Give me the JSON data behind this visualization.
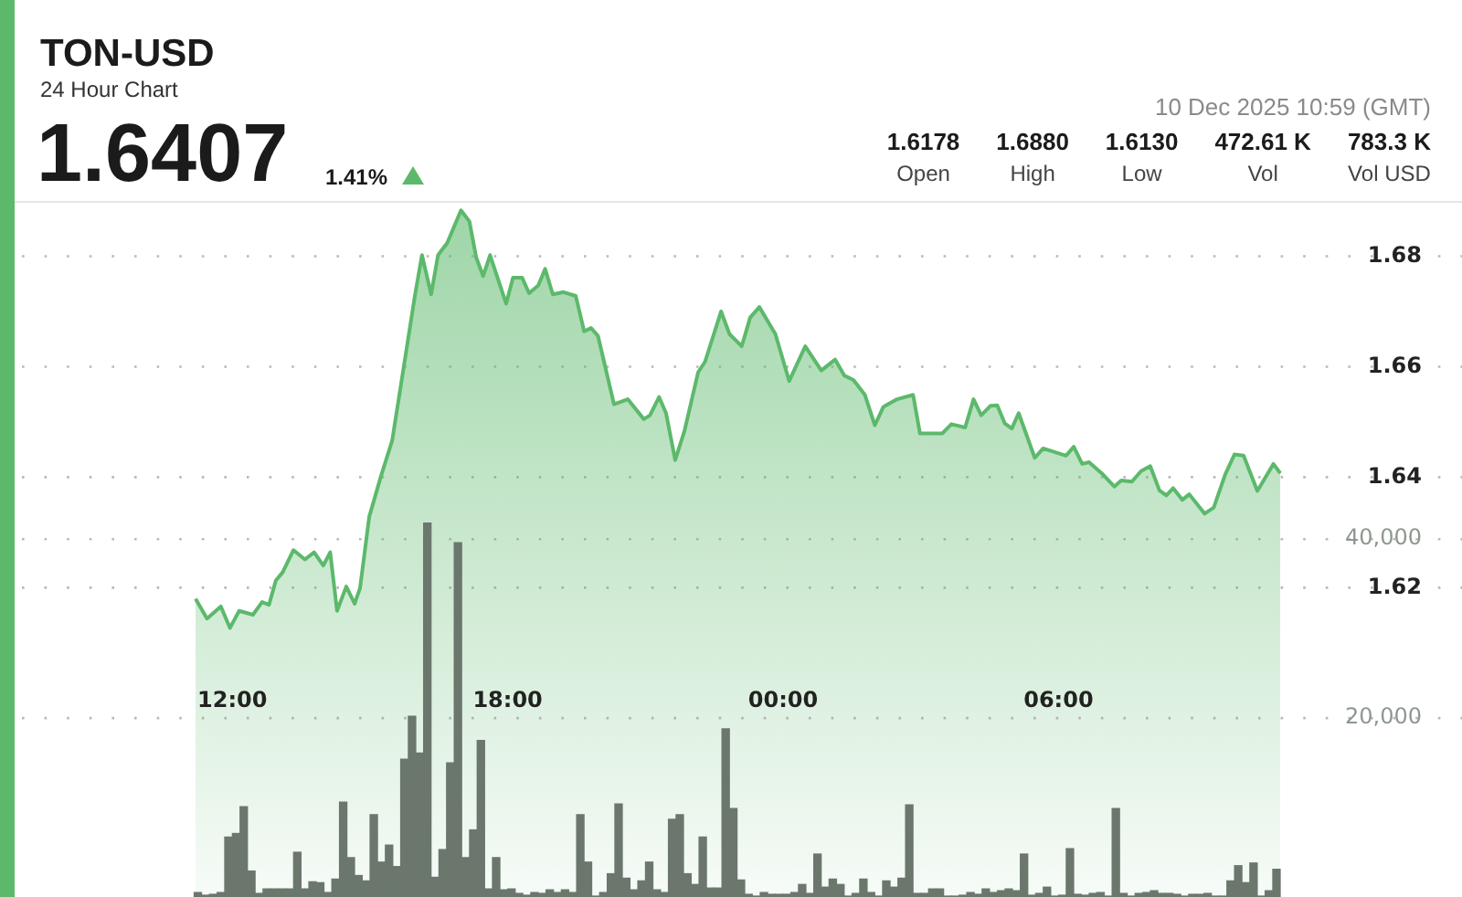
{
  "chart_data": {
    "type": "area",
    "title": "TON-USD",
    "subtitle": "24 Hour Chart",
    "annotations": [
      "1.6407",
      "1.41%",
      "10 Dec 2025 10:59 (GMT)",
      "1.6178",
      "Open",
      "1.6880",
      "High",
      "1.6130",
      "Low",
      "472.61 K",
      "Vol",
      "783.3 K",
      "Vol USD"
    ],
    "xlim": [
      "2025-12-09T11:12",
      "2025-12-10T10:51"
    ],
    "xticks": [
      {
        "value": "2025-12-09T12:00",
        "label": "12:00"
      },
      {
        "value": "2025-12-09T18:00",
        "label": "18:00"
      },
      {
        "value": "2025-12-10T00:00",
        "label": "00:00"
      },
      {
        "value": "2025-12-10T06:00",
        "label": "06:00"
      }
    ],
    "ylim": [
      1.564,
      1.69
    ],
    "yticks": [
      1.62,
      1.64,
      1.66,
      1.68
    ],
    "y2lim": [
      0,
      77800
    ],
    "y2ticks": [
      {
        "value": 20000,
        "label": "20,000"
      },
      {
        "value": 40000,
        "label": "40,000"
      }
    ],
    "grid": "y",
    "legend": false,
    "series": [
      {
        "color": "#5cb96b",
        "x": [
          "2025-12-09T11:12",
          "2025-12-09T11:27",
          "2025-12-09T11:45",
          "2025-12-09T11:57",
          "2025-12-09T12:09",
          "2025-12-09T12:27",
          "2025-12-09T12:39",
          "2025-12-09T12:48",
          "2025-12-09T12:57",
          "2025-12-09T13:06",
          "2025-12-09T13:20",
          "2025-12-09T13:35",
          "2025-12-09T13:47",
          "2025-12-09T13:59",
          "2025-12-09T14:08",
          "2025-12-09T14:17",
          "2025-12-09T14:29",
          "2025-12-09T14:40",
          "2025-12-09T14:47",
          "2025-12-09T14:59",
          "2025-12-09T15:14",
          "2025-12-09T15:29",
          "2025-12-09T15:44",
          "2025-12-09T15:59",
          "2025-12-09T16:08",
          "2025-12-09T16:20",
          "2025-12-09T16:29",
          "2025-12-09T16:41",
          "2025-12-09T16:59",
          "2025-12-09T17:10",
          "2025-12-09T17:19",
          "2025-12-09T17:28",
          "2025-12-09T17:37",
          "2025-12-09T17:58",
          "2025-12-09T18:07",
          "2025-12-09T18:19",
          "2025-12-09T18:28",
          "2025-12-09T18:40",
          "2025-12-09T18:49",
          "2025-12-09T18:59",
          "2025-12-09T19:13",
          "2025-12-09T19:29",
          "2025-12-09T19:40",
          "2025-12-09T19:49",
          "2025-12-09T19:58",
          "2025-12-09T20:19",
          "2025-12-09T20:37",
          "2025-12-09T20:58",
          "2025-12-09T21:06",
          "2025-12-09T21:18",
          "2025-12-09T21:27",
          "2025-12-09T21:39",
          "2025-12-09T21:51",
          "2025-12-09T22:09",
          "2025-12-09T22:18",
          "2025-12-09T22:39",
          "2025-12-09T22:50",
          "2025-12-09T23:06",
          "2025-12-09T23:17",
          "2025-12-09T23:29",
          "2025-12-09T23:50",
          "2025-12-10T00:08",
          "2025-12-10T00:29",
          "2025-12-10T00:50",
          "2025-12-10T01:08",
          "2025-12-10T01:20",
          "2025-12-10T01:32",
          "2025-12-10T01:47",
          "2025-12-10T02:00",
          "2025-12-10T02:11",
          "2025-12-10T02:29",
          "2025-12-10T02:50",
          "2025-12-10T02:59",
          "2025-12-10T03:28",
          "2025-12-10T03:40",
          "2025-12-10T03:58",
          "2025-12-10T04:09",
          "2025-12-10T04:19",
          "2025-12-10T04:31",
          "2025-12-10T04:40",
          "2025-12-10T04:50",
          "2025-12-10T04:59",
          "2025-12-10T05:08",
          "2025-12-10T05:29",
          "2025-12-10T05:40",
          "2025-12-10T06:10",
          "2025-12-10T06:20",
          "2025-12-10T06:31",
          "2025-12-10T06:40",
          "2025-12-10T06:58",
          "2025-12-10T07:13",
          "2025-12-10T07:22",
          "2025-12-10T07:36",
          "2025-12-10T07:48",
          "2025-12-10T08:00",
          "2025-12-10T08:12",
          "2025-12-10T08:21",
          "2025-12-10T08:30",
          "2025-12-10T08:42",
          "2025-12-10T08:51",
          "2025-12-10T09:11",
          "2025-12-10T09:23",
          "2025-12-10T09:38",
          "2025-12-10T09:50",
          "2025-12-10T10:02",
          "2025-12-10T10:20",
          "2025-12-10T10:41",
          "2025-12-10T10:50"
        ],
        "values": [
          1.618,
          1.6144,
          1.6166,
          1.6127,
          1.6158,
          1.6151,
          1.6174,
          1.6169,
          1.6213,
          1.6228,
          1.6268,
          1.6251,
          1.6264,
          1.624,
          1.6264,
          1.6158,
          1.6202,
          1.6171,
          1.6199,
          1.6328,
          1.64,
          1.6466,
          1.6598,
          1.6731,
          1.6802,
          1.6731,
          1.6802,
          1.6824,
          1.6883,
          1.6863,
          1.6797,
          1.6764,
          1.6802,
          1.6714,
          1.6761,
          1.6761,
          1.6733,
          1.6747,
          1.6777,
          1.6731,
          1.6735,
          1.6728,
          1.6664,
          1.667,
          1.6656,
          1.6532,
          1.6541,
          1.6505,
          1.6512,
          1.6545,
          1.6516,
          1.6431,
          1.6483,
          1.659,
          1.6609,
          1.67,
          1.6659,
          1.6637,
          1.6689,
          1.6708,
          1.6659,
          1.6574,
          1.6637,
          1.6593,
          1.6613,
          1.6584,
          1.6576,
          1.6549,
          1.6494,
          1.6527,
          1.6541,
          1.6549,
          1.6479,
          1.6479,
          1.6496,
          1.649,
          1.6541,
          1.6512,
          1.6529,
          1.653,
          1.6497,
          1.6488,
          1.6516,
          1.6435,
          1.6452,
          1.6439,
          1.6455,
          1.6424,
          1.6427,
          1.6405,
          1.6383,
          1.6394,
          1.6392,
          1.6411,
          1.642,
          1.6376,
          1.6367,
          1.638,
          1.6359,
          1.6369,
          1.6334,
          1.6345,
          1.6405,
          1.6441,
          1.6439,
          1.6375,
          1.6424,
          1.6407
        ]
      },
      {
        "type": "bar",
        "axis": "y2",
        "color": "#6b776d",
        "x": [
          "2025-12-09T11:15",
          "2025-12-09T11:25",
          "2025-12-09T11:35",
          "2025-12-09T11:45",
          "2025-12-09T11:55",
          "2025-12-09T12:05",
          "2025-12-09T12:15",
          "2025-12-09T12:25",
          "2025-12-09T12:35",
          "2025-12-09T12:45",
          "2025-12-09T12:55",
          "2025-12-09T13:05",
          "2025-12-09T13:15",
          "2025-12-09T13:25",
          "2025-12-09T13:35",
          "2025-12-09T13:45",
          "2025-12-09T13:55",
          "2025-12-09T14:05",
          "2025-12-09T14:15",
          "2025-12-09T14:25",
          "2025-12-09T14:35",
          "2025-12-09T14:45",
          "2025-12-09T14:55",
          "2025-12-09T15:05",
          "2025-12-09T15:15",
          "2025-12-09T15:25",
          "2025-12-09T15:35",
          "2025-12-09T15:45",
          "2025-12-09T15:55",
          "2025-12-09T16:05",
          "2025-12-09T16:15",
          "2025-12-09T16:25",
          "2025-12-09T16:35",
          "2025-12-09T16:45",
          "2025-12-09T16:55",
          "2025-12-09T17:05",
          "2025-12-09T17:15",
          "2025-12-09T17:25",
          "2025-12-09T17:35",
          "2025-12-09T17:45",
          "2025-12-09T17:55",
          "2025-12-09T18:05",
          "2025-12-09T18:15",
          "2025-12-09T18:25",
          "2025-12-09T18:35",
          "2025-12-09T18:45",
          "2025-12-09T18:55",
          "2025-12-09T19:05",
          "2025-12-09T19:15",
          "2025-12-09T19:25",
          "2025-12-09T19:35",
          "2025-12-09T19:45",
          "2025-12-09T19:55",
          "2025-12-09T20:05",
          "2025-12-09T20:15",
          "2025-12-09T20:25",
          "2025-12-09T20:35",
          "2025-12-09T20:45",
          "2025-12-09T20:55",
          "2025-12-09T21:05",
          "2025-12-09T21:15",
          "2025-12-09T21:25",
          "2025-12-09T21:35",
          "2025-12-09T21:45",
          "2025-12-09T21:55",
          "2025-12-09T22:05",
          "2025-12-09T22:15",
          "2025-12-09T22:25",
          "2025-12-09T22:35",
          "2025-12-09T22:45",
          "2025-12-09T22:55",
          "2025-12-09T23:05",
          "2025-12-09T23:15",
          "2025-12-09T23:25",
          "2025-12-09T23:35",
          "2025-12-09T23:45",
          "2025-12-09T23:55",
          "2025-12-10T00:05",
          "2025-12-10T00:15",
          "2025-12-10T00:25",
          "2025-12-10T00:35",
          "2025-12-10T00:45",
          "2025-12-10T00:55",
          "2025-12-10T01:05",
          "2025-12-10T01:15",
          "2025-12-10T01:25",
          "2025-12-10T01:35",
          "2025-12-10T01:45",
          "2025-12-10T01:55",
          "2025-12-10T02:05",
          "2025-12-10T02:15",
          "2025-12-10T02:25",
          "2025-12-10T02:35",
          "2025-12-10T02:45",
          "2025-12-10T02:55",
          "2025-12-10T03:05",
          "2025-12-10T03:15",
          "2025-12-10T03:25",
          "2025-12-10T03:35",
          "2025-12-10T03:45",
          "2025-12-10T03:55",
          "2025-12-10T04:05",
          "2025-12-10T04:15",
          "2025-12-10T04:25",
          "2025-12-10T04:35",
          "2025-12-10T04:45",
          "2025-12-10T04:55",
          "2025-12-10T05:05",
          "2025-12-10T05:15",
          "2025-12-10T05:25",
          "2025-12-10T05:35",
          "2025-12-10T05:45",
          "2025-12-10T05:55",
          "2025-12-10T06:05",
          "2025-12-10T06:15",
          "2025-12-10T06:25",
          "2025-12-10T06:35",
          "2025-12-10T06:45",
          "2025-12-10T06:55",
          "2025-12-10T07:05",
          "2025-12-10T07:15",
          "2025-12-10T07:25",
          "2025-12-10T07:35",
          "2025-12-10T07:45",
          "2025-12-10T07:55",
          "2025-12-10T08:05",
          "2025-12-10T08:15",
          "2025-12-10T08:25",
          "2025-12-10T08:35",
          "2025-12-10T08:45",
          "2025-12-10T08:55",
          "2025-12-10T09:05",
          "2025-12-10T09:15",
          "2025-12-10T09:25",
          "2025-12-10T09:35",
          "2025-12-10T09:45",
          "2025-12-10T09:55",
          "2025-12-10T10:05",
          "2025-12-10T10:15",
          "2025-12-10T10:25",
          "2025-12-10T10:35",
          "2025-12-10T10:45"
        ],
        "values": [
          500,
          200,
          300,
          500,
          6700,
          7100,
          10100,
          2900,
          400,
          900,
          900,
          900,
          900,
          5000,
          900,
          1700,
          1600,
          500,
          2000,
          10600,
          4400,
          2400,
          1800,
          9200,
          3900,
          5800,
          3400,
          15400,
          20200,
          16100,
          41800,
          2200,
          5300,
          15000,
          39600,
          4400,
          7500,
          17500,
          900,
          4400,
          800,
          900,
          400,
          200,
          500,
          400,
          800,
          500,
          800,
          500,
          9200,
          3900,
          100,
          500,
          2600,
          10400,
          2100,
          800,
          1800,
          3900,
          800,
          500,
          8700,
          9200,
          2600,
          1400,
          6700,
          1000,
          1000,
          18800,
          9900,
          1900,
          300,
          100,
          500,
          300,
          300,
          300,
          500,
          1400,
          400,
          4800,
          1100,
          2000,
          1400,
          100,
          400,
          2000,
          500,
          100,
          1800,
          1100,
          2100,
          10300,
          400,
          400,
          900,
          900,
          100,
          100,
          200,
          500,
          300,
          900,
          500,
          700,
          900,
          700,
          4800,
          200,
          400,
          1100,
          100,
          200,
          5400,
          300,
          200,
          400,
          500,
          100,
          9900,
          400,
          100,
          400,
          500,
          700,
          400,
          400,
          300,
          100,
          300,
          300,
          400,
          100,
          100,
          1800,
          3500,
          1600,
          3800,
          100,
          700,
          3100
        ]
      }
    ]
  }
}
